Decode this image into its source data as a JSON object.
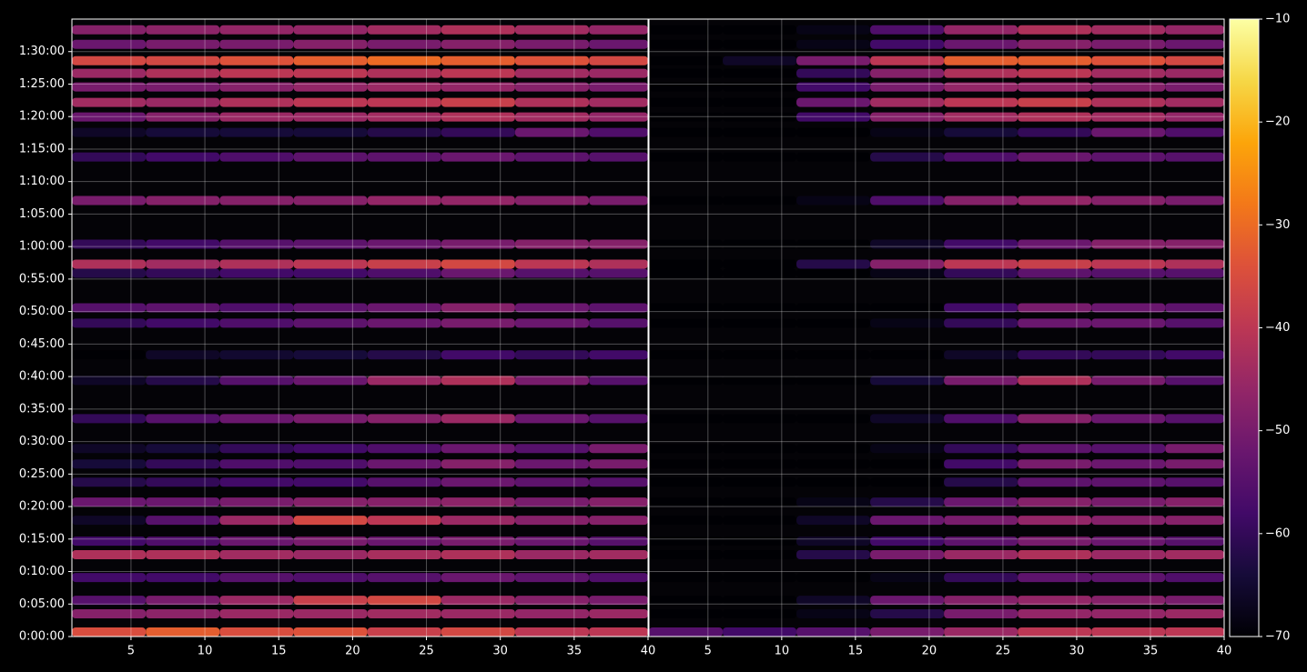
{
  "chart_data": {
    "type": "heatmap",
    "colormap": "inferno",
    "grid": true,
    "xlim": [
      1,
      40
    ],
    "ylim": [
      0,
      5700
    ],
    "xticks": [
      5,
      10,
      15,
      20,
      25,
      30,
      35,
      40
    ],
    "yticks": [
      {
        "value": 0,
        "label": "0:00:00"
      },
      {
        "value": 300,
        "label": "0:05:00"
      },
      {
        "value": 600,
        "label": "0:10:00"
      },
      {
        "value": 900,
        "label": "0:15:00"
      },
      {
        "value": 1200,
        "label": "0:20:00"
      },
      {
        "value": 1500,
        "label": "0:25:00"
      },
      {
        "value": 1800,
        "label": "0:30:00"
      },
      {
        "value": 2100,
        "label": "0:35:00"
      },
      {
        "value": 2400,
        "label": "0:40:00"
      },
      {
        "value": 2700,
        "label": "0:45:00"
      },
      {
        "value": 3000,
        "label": "0:50:00"
      },
      {
        "value": 3300,
        "label": "0:55:00"
      },
      {
        "value": 3600,
        "label": "1:00:00"
      },
      {
        "value": 3900,
        "label": "1:05:00"
      },
      {
        "value": 4200,
        "label": "1:10:00"
      },
      {
        "value": 4500,
        "label": "1:15:00"
      },
      {
        "value": 4800,
        "label": "1:20:00"
      },
      {
        "value": 5100,
        "label": "1:25:00"
      },
      {
        "value": 5400,
        "label": "1:30:00"
      }
    ],
    "clim": [
      -70,
      -10
    ],
    "cticks": [
      {
        "value": -70,
        "label": "−70"
      },
      {
        "value": -60,
        "label": "−60"
      },
      {
        "value": -50,
        "label": "−50"
      },
      {
        "value": -40,
        "label": "−40"
      },
      {
        "value": -30,
        "label": "−30"
      },
      {
        "value": -20,
        "label": "−20"
      },
      {
        "value": -10,
        "label": "−10"
      }
    ],
    "x_edges": [
      1,
      6,
      11,
      16,
      21,
      26,
      31,
      36,
      40
    ],
    "y": [
      42,
      210,
      335,
      545,
      755,
      880,
      1073,
      1241,
      1425,
      1593,
      1736,
      2012,
      2364,
      2600,
      2893,
      3035,
      3354,
      3438,
      3622,
      4025,
      4427,
      4654,
      4796,
      4931,
      5074,
      5199,
      5316,
      5467,
      5601
    ],
    "panels": [
      {
        "values": [
          [
            -35,
            -32,
            -35,
            -34,
            -38,
            -36,
            -40,
            -40
          ],
          [
            -48,
            -47,
            -45,
            -45,
            -44,
            -45,
            -46,
            -45
          ],
          [
            -55,
            -50,
            -45,
            -38,
            -36,
            -45,
            -48,
            -50
          ],
          [
            -58,
            -58,
            -55,
            -56,
            -55,
            -52,
            -54,
            -56
          ],
          [
            -42,
            -42,
            -44,
            -45,
            -43,
            -42,
            -45,
            -44
          ],
          [
            -58,
            -56,
            -52,
            -50,
            -52,
            -50,
            -52,
            -55
          ],
          [
            -66,
            -55,
            -45,
            -36,
            -40,
            -45,
            -48,
            -48
          ],
          [
            -52,
            -52,
            -50,
            -48,
            -48,
            -47,
            -50,
            -48
          ],
          [
            -62,
            -60,
            -58,
            -58,
            -55,
            -52,
            -54,
            -55
          ],
          [
            -64,
            -60,
            -56,
            -56,
            -52,
            -48,
            -52,
            -50
          ],
          [
            -66,
            -64,
            -60,
            -58,
            -56,
            -52,
            -55,
            -50
          ],
          [
            -60,
            -55,
            -52,
            -50,
            -48,
            -45,
            -52,
            -55
          ],
          [
            -66,
            -62,
            -55,
            -52,
            -45,
            -42,
            -50,
            -55
          ],
          [
            -70,
            -66,
            -65,
            -64,
            -62,
            -58,
            -60,
            -58
          ],
          [
            -60,
            -58,
            -56,
            -54,
            -52,
            -50,
            -52,
            -55
          ],
          [
            -55,
            -54,
            -56,
            -54,
            -52,
            -48,
            -52,
            -54
          ],
          [
            -62,
            -60,
            -58,
            -58,
            -56,
            -52,
            -55,
            -55
          ],
          [
            -42,
            -44,
            -42,
            -40,
            -38,
            -36,
            -40,
            -42
          ],
          [
            -60,
            -58,
            -55,
            -54,
            -52,
            -50,
            -48,
            -48
          ],
          [
            -50,
            -48,
            -48,
            -48,
            -46,
            -46,
            -48,
            -50
          ],
          [
            -60,
            -58,
            -56,
            -54,
            -54,
            -52,
            -54,
            -55
          ],
          [
            -66,
            -64,
            -64,
            -64,
            -62,
            -60,
            -52,
            -56
          ],
          [
            -52,
            -48,
            -45,
            -45,
            -44,
            -42,
            -44,
            -46
          ],
          [
            -44,
            -45,
            -42,
            -40,
            -40,
            -38,
            -42,
            -44
          ],
          [
            -50,
            -50,
            -48,
            -46,
            -45,
            -46,
            -48,
            -50
          ],
          [
            -45,
            -42,
            -40,
            -40,
            -42,
            -40,
            -44,
            -45
          ],
          [
            -36,
            -36,
            -34,
            -32,
            -30,
            -32,
            -34,
            -36
          ],
          [
            -52,
            -50,
            -50,
            -48,
            -50,
            -48,
            -50,
            -52
          ],
          [
            -48,
            -47,
            -46,
            -46,
            -44,
            -42,
            -44,
            -46
          ]
        ]
      },
      {
        "values": [
          [
            -55,
            -58,
            -55,
            -50,
            -45,
            -40,
            -40,
            -40
          ],
          [
            -70,
            -70,
            -68,
            -62,
            -50,
            -46,
            -46,
            -45
          ],
          [
            -70,
            -70,
            -66,
            -52,
            -48,
            -46,
            -48,
            -50
          ],
          [
            -70,
            -70,
            -70,
            -68,
            -60,
            -54,
            -54,
            -56
          ],
          [
            -70,
            -70,
            -62,
            -50,
            -45,
            -42,
            -45,
            -44
          ],
          [
            -70,
            -70,
            -66,
            -58,
            -54,
            -50,
            -52,
            -55
          ],
          [
            -70,
            -70,
            -66,
            -52,
            -50,
            -46,
            -48,
            -48
          ],
          [
            -70,
            -70,
            -68,
            -62,
            -52,
            -48,
            -50,
            -48
          ],
          [
            -70,
            -70,
            -70,
            -70,
            -62,
            -54,
            -54,
            -55
          ],
          [
            -70,
            -70,
            -70,
            -70,
            -58,
            -50,
            -52,
            -50
          ],
          [
            -70,
            -70,
            -70,
            -68,
            -60,
            -54,
            -55,
            -50
          ],
          [
            -70,
            -70,
            -70,
            -66,
            -56,
            -48,
            -52,
            -55
          ],
          [
            -70,
            -70,
            -70,
            -64,
            -50,
            -42,
            -50,
            -55
          ],
          [
            -70,
            -70,
            -70,
            -70,
            -66,
            -60,
            -60,
            -58
          ],
          [
            -70,
            -70,
            -70,
            -68,
            -60,
            -52,
            -52,
            -55
          ],
          [
            -70,
            -70,
            -70,
            -70,
            -58,
            -50,
            -52,
            -54
          ],
          [
            -70,
            -70,
            -70,
            -68,
            -60,
            -54,
            -55,
            -55
          ],
          [
            -70,
            -70,
            -62,
            -48,
            -40,
            -38,
            -40,
            -42
          ],
          [
            -70,
            -70,
            -70,
            -66,
            -58,
            -52,
            -48,
            -48
          ],
          [
            -70,
            -70,
            -68,
            -56,
            -48,
            -46,
            -48,
            -50
          ],
          [
            -70,
            -70,
            -70,
            -62,
            -56,
            -52,
            -54,
            -55
          ],
          [
            -70,
            -70,
            -70,
            -68,
            -64,
            -60,
            -52,
            -56
          ],
          [
            -70,
            -70,
            -58,
            -48,
            -44,
            -42,
            -44,
            -46
          ],
          [
            -70,
            -70,
            -52,
            -44,
            -40,
            -38,
            -42,
            -44
          ],
          [
            -70,
            -70,
            -58,
            -50,
            -46,
            -46,
            -48,
            -50
          ],
          [
            -70,
            -70,
            -60,
            -48,
            -42,
            -40,
            -44,
            -45
          ],
          [
            -70,
            -66,
            -50,
            -40,
            -32,
            -32,
            -34,
            -36
          ],
          [
            -70,
            -70,
            -68,
            -58,
            -52,
            -48,
            -50,
            -52
          ],
          [
            -70,
            -70,
            -68,
            -56,
            -46,
            -42,
            -44,
            -46
          ]
        ]
      }
    ]
  }
}
